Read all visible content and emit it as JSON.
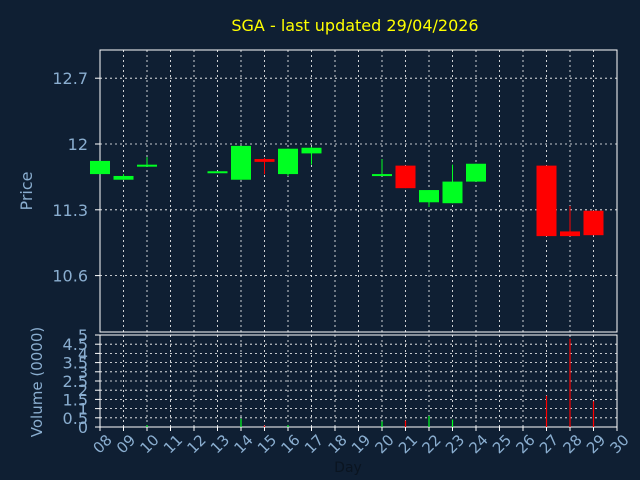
{
  "chart_data": [
    {
      "type": "candlestick",
      "title": "SGA - last updated 29/04/2026",
      "ylabel": "Price",
      "y_ticks": [
        "12.7",
        "12",
        "11.3",
        "10.6"
      ],
      "ylim": [
        10.0,
        13.0
      ],
      "grid": true,
      "candles": [
        {
          "day": 8,
          "open": 11.68,
          "close": 11.82,
          "high": 11.82,
          "low": 11.68
        },
        {
          "day": 9,
          "open": 11.62,
          "close": 11.66,
          "high": 11.68,
          "low": 11.62
        },
        {
          "day": 10,
          "open": 11.76,
          "close": 11.78,
          "high": 11.86,
          "low": 11.76
        },
        {
          "day": 13,
          "open": 11.7,
          "close": 11.71,
          "high": 11.71,
          "low": 11.7
        },
        {
          "day": 14,
          "open": 11.62,
          "close": 11.98,
          "high": 11.98,
          "low": 11.62
        },
        {
          "day": 15,
          "open": 11.84,
          "close": 11.81,
          "high": 11.85,
          "low": 11.68
        },
        {
          "day": 16,
          "open": 11.68,
          "close": 11.95,
          "high": 11.95,
          "low": 11.66
        },
        {
          "day": 17,
          "open": 11.9,
          "close": 11.96,
          "high": 11.97,
          "low": 11.78
        },
        {
          "day": 20,
          "open": 11.67,
          "close": 11.68,
          "high": 11.84,
          "low": 11.67
        },
        {
          "day": 21,
          "open": 11.77,
          "close": 11.53,
          "high": 11.77,
          "low": 11.53
        },
        {
          "day": 22,
          "open": 11.38,
          "close": 11.51,
          "high": 11.51,
          "low": 11.33
        },
        {
          "day": 23,
          "open": 11.37,
          "close": 11.6,
          "high": 11.78,
          "low": 11.37
        },
        {
          "day": 24,
          "open": 11.6,
          "close": 11.79,
          "high": 11.79,
          "low": 11.6
        },
        {
          "day": 27,
          "open": 11.77,
          "close": 11.02,
          "high": 11.77,
          "low": 11.02
        },
        {
          "day": 28,
          "open": 11.07,
          "close": 11.02,
          "high": 11.34,
          "low": 11.02
        },
        {
          "day": 29,
          "open": 11.29,
          "close": 11.03,
          "high": 11.29,
          "low": 11.03
        }
      ],
      "colors": {
        "up": "#00ff22",
        "down": "#ff0000",
        "background": "#0f1f33",
        "axis": "#ffffff",
        "grid": "#ffffff",
        "title": "#ffff00",
        "label": "#8aaed0"
      }
    },
    {
      "type": "bar",
      "ylabel": "Volume (0000)",
      "xlabel": "Day",
      "y_ticks": [
        "0",
        "0.5",
        "1",
        "1.5",
        "2",
        "2.5",
        "3",
        "3.5",
        "4",
        "4.5",
        "5"
      ],
      "ylim": [
        0,
        5
      ],
      "x_ticks": [
        "08",
        "09",
        "10",
        "11",
        "12",
        "13",
        "14",
        "15",
        "16",
        "17",
        "18",
        "19",
        "20",
        "21",
        "22",
        "23",
        "24",
        "25",
        "26",
        "27",
        "28",
        "29",
        "30"
      ],
      "bars": [
        {
          "day": 10,
          "value": 0.1,
          "direction": "up"
        },
        {
          "day": 14,
          "value": 0.45,
          "direction": "up"
        },
        {
          "day": 15,
          "value": 0.08,
          "direction": "down"
        },
        {
          "day": 16,
          "value": 0.1,
          "direction": "up"
        },
        {
          "day": 20,
          "value": 0.3,
          "direction": "up"
        },
        {
          "day": 21,
          "value": 0.35,
          "direction": "down"
        },
        {
          "day": 22,
          "value": 0.6,
          "direction": "up"
        },
        {
          "day": 23,
          "value": 0.4,
          "direction": "up"
        },
        {
          "day": 27,
          "value": 1.7,
          "direction": "down"
        },
        {
          "day": 28,
          "value": 4.8,
          "direction": "down"
        },
        {
          "day": 29,
          "value": 1.4,
          "direction": "down"
        }
      ]
    }
  ]
}
